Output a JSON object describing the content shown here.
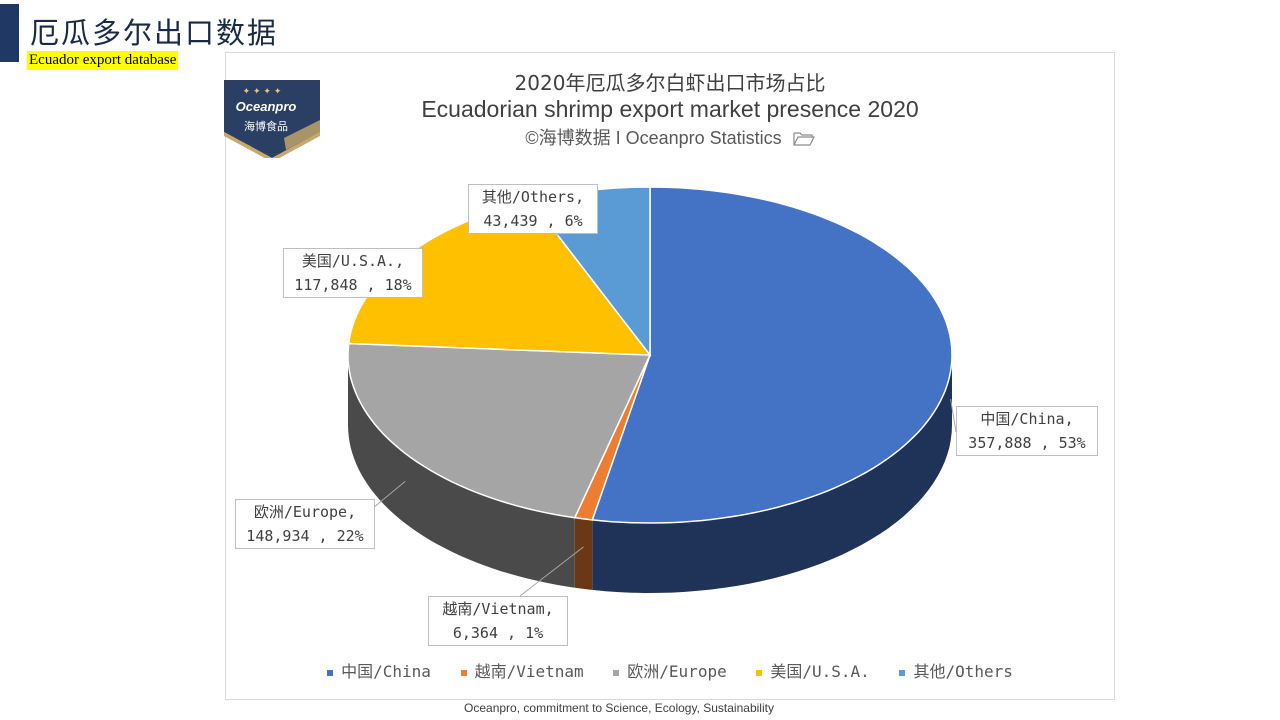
{
  "header": {
    "title": "厄瓜多尔出口数据",
    "subtitle": "Ecuador export database"
  },
  "logo": {
    "brand": "Oceanpro",
    "brand_cn": "海博食品",
    "stars": "✦ ✦ ✦ ✦"
  },
  "chart_data": {
    "type": "pie",
    "title": "2020年厄瓜多尔白虾出口市场占比",
    "subtitle": "Ecuadorian shrimp export market presence 2020",
    "credit": "©海博数据 I Oceanpro Statistics",
    "legend_position": "bottom",
    "slices": [
      {
        "name": "中国/China",
        "value": 357888,
        "value_label": "357,888",
        "percent": "53%",
        "color": "#4472c4"
      },
      {
        "name": "越南/Vietnam",
        "value": 6364,
        "value_label": "6,364",
        "percent": "1%",
        "color": "#ed7d31"
      },
      {
        "name": "欧洲/Europe",
        "value": 148934,
        "value_label": "148,934",
        "percent": "22%",
        "color": "#a5a5a5"
      },
      {
        "name": "美国/U.S.A.",
        "value": 117848,
        "value_label": "117,848",
        "percent": "18%",
        "color": "#ffc000"
      },
      {
        "name": "其他/Others",
        "value": 43439,
        "value_label": "43,439",
        "percent": "6%",
        "color": "#5b9bd5"
      }
    ]
  },
  "labels": {
    "china": {
      "l1": "中国/China,",
      "l2": "357,888 , 53%"
    },
    "vietnam": {
      "l1": "越南/Vietnam,",
      "l2": "6,364 , 1%"
    },
    "europe": {
      "l1": "欧洲/Europe,",
      "l2": "148,934 , 22%"
    },
    "usa": {
      "l1": "美国/U.S.A.,",
      "l2": "117,848 , 18%"
    },
    "others": {
      "l1": "其他/Others,",
      "l2": "43,439 , 6%"
    }
  },
  "legend": {
    "china": "中国/China",
    "vietnam": "越南/Vietnam",
    "europe": "欧洲/Europe",
    "usa": "美国/U.S.A.",
    "others": "其他/Others"
  },
  "footer": "Oceanpro, commitment to Science, Ecology, Sustainability"
}
